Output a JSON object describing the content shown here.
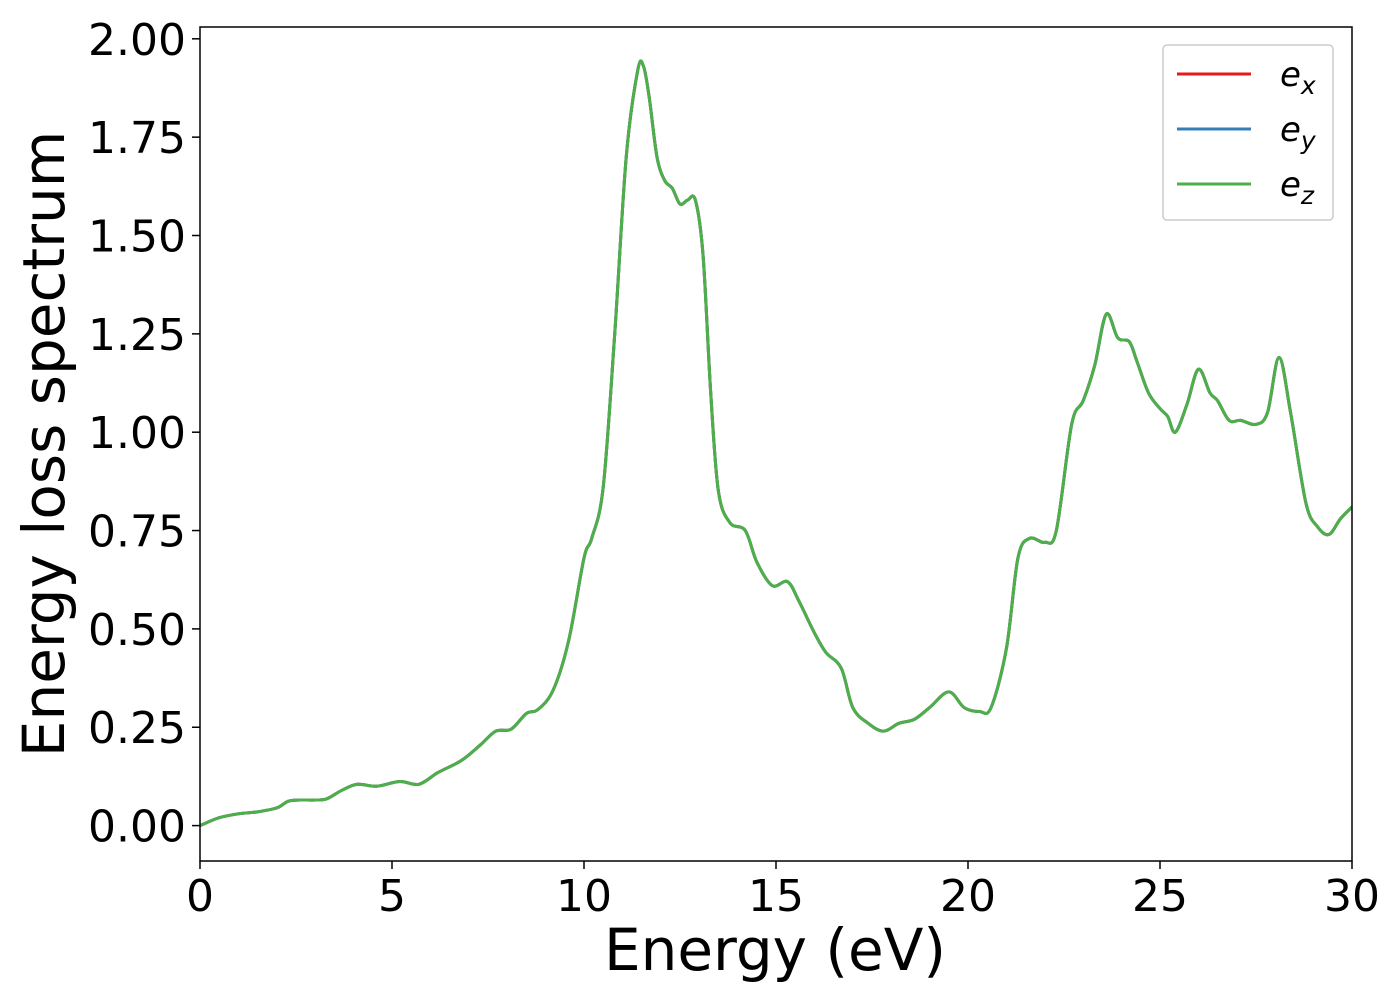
{
  "chart_data": {
    "type": "line",
    "xlabel": "Energy (eV)",
    "ylabel": "Energy loss spectrum",
    "xlim": [
      0,
      30
    ],
    "ylim": [
      -0.09,
      2.03
    ],
    "xticks": [
      "0",
      "5",
      "10",
      "15",
      "20",
      "25",
      "30"
    ],
    "xtick_values": [
      0,
      5,
      10,
      15,
      20,
      25,
      30
    ],
    "yticks": [
      "0.00",
      "0.25",
      "0.50",
      "0.75",
      "1.00",
      "1.25",
      "1.50",
      "1.75",
      "2.00"
    ],
    "ytick_values": [
      0,
      0.25,
      0.5,
      0.75,
      1.0,
      1.25,
      1.5,
      1.75,
      2.0
    ],
    "grid": false,
    "legend_position": "top-right",
    "series": [
      {
        "name": "e",
        "subscript": "x",
        "color": "#e41a1c",
        "x": [],
        "y": []
      },
      {
        "name": "e",
        "subscript": "y",
        "color": "#377eb8",
        "x": [],
        "y": []
      },
      {
        "name": "e",
        "subscript": "z",
        "color": "#4daf4a",
        "x": [],
        "y": []
      }
    ],
    "shared_curve": {
      "x": [
        0,
        0.5,
        1.0,
        1.5,
        2.0,
        2.3,
        2.6,
        3.0,
        3.3,
        3.7,
        4.1,
        4.6,
        5.2,
        5.7,
        6.2,
        6.8,
        7.3,
        7.7,
        8.1,
        8.5,
        8.8,
        9.2,
        9.6,
        10.0,
        10.2,
        10.5,
        10.8,
        11.1,
        11.4,
        11.55,
        11.7,
        11.9,
        12.1,
        12.3,
        12.5,
        12.7,
        12.9,
        13.1,
        13.3,
        13.5,
        13.8,
        14.2,
        14.5,
        14.9,
        15.3,
        15.6,
        16.0,
        16.3,
        16.7,
        17.0,
        17.4,
        17.8,
        18.2,
        18.6,
        19.0,
        19.5,
        19.9,
        20.3,
        20.6,
        21.0,
        21.3,
        21.6,
        22.0,
        22.3,
        22.7,
        23.0,
        23.3,
        23.6,
        23.9,
        24.2,
        24.4,
        24.7,
        25.0,
        25.2,
        25.4,
        25.7,
        26.0,
        26.3,
        26.5,
        26.8,
        27.1,
        27.5,
        27.8,
        28.1,
        28.4,
        28.8,
        29.1,
        29.4,
        29.7,
        30.0
      ],
      "y": [
        0.0,
        0.02,
        0.03,
        0.035,
        0.045,
        0.062,
        0.065,
        0.065,
        0.068,
        0.09,
        0.105,
        0.1,
        0.112,
        0.105,
        0.135,
        0.165,
        0.205,
        0.24,
        0.245,
        0.285,
        0.295,
        0.345,
        0.47,
        0.68,
        0.73,
        0.86,
        1.25,
        1.7,
        1.92,
        1.93,
        1.85,
        1.7,
        1.64,
        1.62,
        1.58,
        1.59,
        1.59,
        1.45,
        1.1,
        0.85,
        0.77,
        0.75,
        0.67,
        0.61,
        0.62,
        0.57,
        0.49,
        0.44,
        0.4,
        0.3,
        0.26,
        0.24,
        0.26,
        0.27,
        0.3,
        0.34,
        0.3,
        0.29,
        0.3,
        0.45,
        0.68,
        0.73,
        0.72,
        0.75,
        1.02,
        1.08,
        1.17,
        1.3,
        1.24,
        1.23,
        1.18,
        1.1,
        1.06,
        1.04,
        1.0,
        1.07,
        1.16,
        1.1,
        1.08,
        1.03,
        1.03,
        1.02,
        1.05,
        1.19,
        1.05,
        0.82,
        0.76,
        0.74,
        0.78,
        0.81
      ]
    }
  }
}
